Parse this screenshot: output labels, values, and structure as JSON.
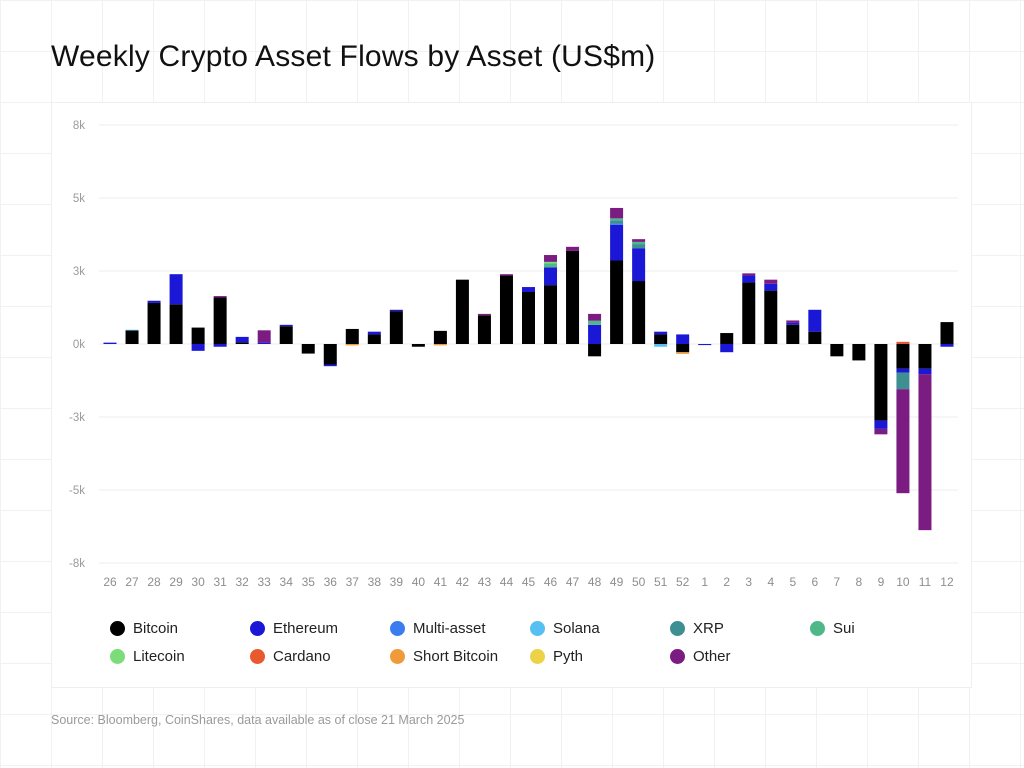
{
  "title": "Weekly Crypto Asset Flows by Asset (US$m)",
  "source": "Source: Bloomberg, CoinShares, data available as of close 21 March 2025",
  "chart_data": {
    "type": "bar",
    "stacked": true,
    "title": "Weekly Crypto Asset Flows by Asset (US$m)",
    "xlabel": "",
    "ylabel": "",
    "ylim": [
      -8000,
      8000
    ],
    "y_ticks": [
      8000,
      5333,
      2667,
      0,
      -2667,
      -5333,
      -8000
    ],
    "y_tick_labels": [
      "8k",
      "5k",
      "3k",
      "0k",
      "-3k",
      "-5k",
      "-8k"
    ],
    "grid": true,
    "legend_position": "bottom",
    "categories": [
      "26",
      "27",
      "28",
      "29",
      "30",
      "31",
      "32",
      "33",
      "34",
      "35",
      "36",
      "37",
      "38",
      "39",
      "40",
      "41",
      "42",
      "43",
      "44",
      "45",
      "46",
      "47",
      "48",
      "49",
      "50",
      "51",
      "52",
      "1",
      "2",
      "3",
      "4",
      "5",
      "6",
      "7",
      "8",
      "9",
      "10",
      "11",
      "12"
    ],
    "series": [
      {
        "name": "Bitcoin",
        "color": "#000000",
        "values": [
          0,
          500,
          1500,
          1450,
          600,
          1700,
          60,
          0,
          650,
          -350,
          -750,
          550,
          350,
          1200,
          -100,
          480,
          2350,
          1050,
          2500,
          1900,
          2150,
          3400,
          -450,
          3050,
          2300,
          350,
          -300,
          0,
          400,
          2250,
          1950,
          700,
          450,
          -450,
          -600,
          -2800,
          -900,
          -900,
          800
        ]
      },
      {
        "name": "Ethereum",
        "color": "#1a17d6",
        "values": [
          50,
          0,
          80,
          1100,
          -250,
          -100,
          200,
          50,
          50,
          0,
          -60,
          0,
          100,
          50,
          0,
          0,
          0,
          0,
          0,
          180,
          650,
          0,
          700,
          1300,
          1200,
          100,
          350,
          -40,
          -300,
          250,
          250,
          80,
          800,
          0,
          0,
          -300,
          -150,
          -200,
          -100
        ]
      },
      {
        "name": "Multi-asset",
        "color": "#3b7df0",
        "values": [
          0,
          0,
          0,
          0,
          0,
          0,
          0,
          0,
          0,
          0,
          0,
          0,
          0,
          0,
          0,
          0,
          0,
          0,
          0,
          0,
          0,
          0,
          0,
          50,
          0,
          0,
          0,
          0,
          0,
          0,
          0,
          0,
          0,
          0,
          0,
          0,
          0,
          0,
          0
        ]
      },
      {
        "name": "Solana",
        "color": "#56c0f2",
        "values": [
          0,
          20,
          0,
          0,
          0,
          0,
          0,
          0,
          0,
          0,
          0,
          0,
          0,
          0,
          0,
          0,
          0,
          0,
          0,
          0,
          0,
          0,
          0,
          0,
          0,
          -100,
          0,
          0,
          0,
          0,
          0,
          0,
          0,
          0,
          0,
          0,
          0,
          0,
          0
        ]
      },
      {
        "name": "XRP",
        "color": "#3d8f92",
        "values": [
          0,
          0,
          0,
          0,
          0,
          0,
          0,
          0,
          0,
          0,
          0,
          0,
          0,
          0,
          0,
          0,
          0,
          0,
          0,
          0,
          0,
          0,
          0,
          120,
          150,
          0,
          0,
          0,
          0,
          0,
          0,
          0,
          0,
          0,
          0,
          0,
          -600,
          0,
          0
        ]
      },
      {
        "name": "Sui",
        "color": "#4fb889",
        "values": [
          0,
          0,
          0,
          0,
          0,
          0,
          0,
          0,
          0,
          0,
          0,
          0,
          0,
          0,
          0,
          0,
          0,
          0,
          0,
          0,
          150,
          0,
          150,
          70,
          80,
          0,
          0,
          0,
          0,
          0,
          0,
          0,
          0,
          0,
          0,
          0,
          0,
          0,
          0
        ]
      },
      {
        "name": "Litecoin",
        "color": "#7cdc78",
        "values": [
          0,
          0,
          0,
          0,
          0,
          0,
          0,
          0,
          0,
          0,
          0,
          0,
          0,
          0,
          0,
          0,
          0,
          0,
          0,
          0,
          50,
          0,
          0,
          0,
          0,
          0,
          0,
          0,
          0,
          0,
          0,
          0,
          0,
          0,
          0,
          0,
          0,
          0,
          0
        ]
      },
      {
        "name": "Cardano",
        "color": "#e85a2e",
        "values": [
          0,
          0,
          0,
          0,
          0,
          0,
          0,
          0,
          0,
          0,
          0,
          0,
          0,
          0,
          0,
          0,
          0,
          0,
          0,
          0,
          0,
          0,
          0,
          0,
          0,
          0,
          0,
          0,
          0,
          0,
          0,
          0,
          0,
          0,
          0,
          0,
          80,
          0,
          0
        ]
      },
      {
        "name": "Short Bitcoin",
        "color": "#f09a3a",
        "values": [
          0,
          0,
          0,
          0,
          0,
          0,
          0,
          0,
          0,
          0,
          0,
          -50,
          0,
          0,
          0,
          -50,
          0,
          0,
          0,
          0,
          0,
          0,
          0,
          0,
          0,
          0,
          -60,
          0,
          0,
          0,
          0,
          0,
          0,
          0,
          0,
          0,
          0,
          0,
          0
        ]
      },
      {
        "name": "Pyth",
        "color": "#edd146",
        "values": [
          0,
          0,
          0,
          0,
          0,
          0,
          0,
          0,
          0,
          0,
          0,
          0,
          0,
          0,
          0,
          0,
          0,
          0,
          0,
          0,
          0,
          0,
          0,
          0,
          0,
          0,
          0,
          0,
          0,
          0,
          0,
          0,
          0,
          0,
          0,
          0,
          0,
          0,
          0
        ]
      },
      {
        "name": "Other",
        "color": "#7b1c82",
        "values": [
          0,
          0,
          0,
          0,
          0,
          50,
          0,
          450,
          0,
          0,
          0,
          0,
          0,
          0,
          0,
          0,
          0,
          50,
          50,
          0,
          250,
          150,
          250,
          380,
          100,
          0,
          0,
          0,
          0,
          80,
          150,
          80,
          0,
          0,
          0,
          -200,
          -3800,
          -5700,
          0
        ]
      }
    ]
  },
  "legend": {
    "items": [
      {
        "label": "Bitcoin",
        "color": "#000000"
      },
      {
        "label": "Ethereum",
        "color": "#1a17d6"
      },
      {
        "label": "Multi-asset",
        "color": "#3b7df0"
      },
      {
        "label": "Solana",
        "color": "#56c0f2"
      },
      {
        "label": "XRP",
        "color": "#3d8f92"
      },
      {
        "label": "Sui",
        "color": "#4fb889"
      },
      {
        "label": "Litecoin",
        "color": "#7cdc78"
      },
      {
        "label": "Cardano",
        "color": "#e85a2e"
      },
      {
        "label": "Short Bitcoin",
        "color": "#f09a3a"
      },
      {
        "label": "Pyth",
        "color": "#edd146"
      },
      {
        "label": "Other",
        "color": "#7b1c82"
      }
    ]
  }
}
